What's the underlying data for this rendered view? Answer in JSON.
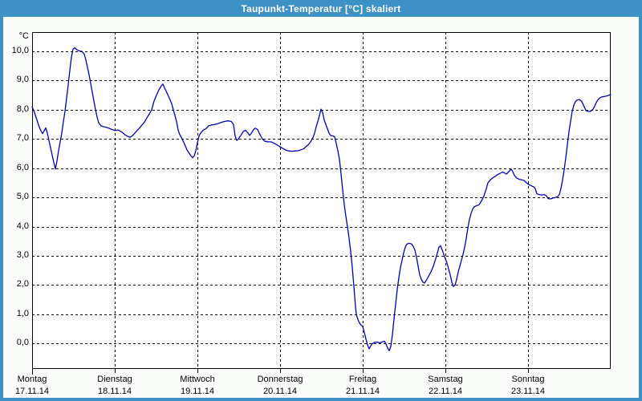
{
  "window": {
    "title": "Taupunkt-Temperatur [°C] skaliert"
  },
  "colors": {
    "titlebar": "#3e91c4",
    "frame": "#3e91c4",
    "page_bg": "#fbfdfb",
    "plot_bg": "#ffffff",
    "grid": "#000000",
    "line": "#0000bb",
    "title_text": "#ffffff",
    "label_text": "#000000"
  },
  "chart_data": {
    "type": "line",
    "title": "Taupunkt-Temperatur [°C] skaliert",
    "xlabel": "",
    "ylabel": "°C",
    "ylim": [
      -0.87,
      10.66
    ],
    "xlim_days": [
      0,
      7
    ],
    "grid": "dashed horizontal at each 1.0 °C, dashed vertical at each day start",
    "legend": "none",
    "yticks": [
      {
        "value": 10,
        "label": "10,0"
      },
      {
        "value": 9,
        "label": "9,0"
      },
      {
        "value": 8,
        "label": "8,0"
      },
      {
        "value": 7,
        "label": "7,0"
      },
      {
        "value": 6,
        "label": "6,0"
      },
      {
        "value": 5,
        "label": "5,0"
      },
      {
        "value": 4,
        "label": "4,0"
      },
      {
        "value": 3,
        "label": "3,0"
      },
      {
        "value": 2,
        "label": "2,0"
      },
      {
        "value": 1,
        "label": "1,0"
      },
      {
        "value": 0,
        "label": "0,0"
      }
    ],
    "days": [
      {
        "name": "Montag",
        "date": "17.11.14"
      },
      {
        "name": "Dienstag",
        "date": "18.11.14"
      },
      {
        "name": "Mittwoch",
        "date": "19.11.14"
      },
      {
        "name": "Donnerstag",
        "date": "20.11.14"
      },
      {
        "name": "Freitag",
        "date": "21.11.14"
      },
      {
        "name": "Samstag",
        "date": "22.11.14"
      },
      {
        "name": "Sonntag",
        "date": "23.11.14"
      }
    ],
    "series": [
      {
        "name": "Taupunkt-Temperatur",
        "unit": "°C",
        "color": "#0000bb",
        "x_unit": "days since Mon 17.11.14 00:00",
        "points": [
          [
            0.0,
            8.1
          ],
          [
            0.029,
            7.9
          ],
          [
            0.058,
            7.65
          ],
          [
            0.087,
            7.4
          ],
          [
            0.107,
            7.28
          ],
          [
            0.126,
            7.18
          ],
          [
            0.146,
            7.28
          ],
          [
            0.165,
            7.38
          ],
          [
            0.184,
            7.2
          ],
          [
            0.204,
            6.95
          ],
          [
            0.223,
            6.7
          ],
          [
            0.243,
            6.45
          ],
          [
            0.262,
            6.2
          ],
          [
            0.282,
            5.97
          ],
          [
            0.301,
            6.25
          ],
          [
            0.32,
            6.6
          ],
          [
            0.34,
            6.9
          ],
          [
            0.359,
            7.2
          ],
          [
            0.379,
            7.6
          ],
          [
            0.398,
            7.95
          ],
          [
            0.417,
            8.4
          ],
          [
            0.437,
            8.85
          ],
          [
            0.456,
            9.35
          ],
          [
            0.476,
            9.8
          ],
          [
            0.495,
            10.08
          ],
          [
            0.515,
            10.12
          ],
          [
            0.544,
            10.05
          ],
          [
            0.573,
            10.01
          ],
          [
            0.602,
            10.0
          ],
          [
            0.631,
            9.9
          ],
          [
            0.65,
            9.7
          ],
          [
            0.67,
            9.45
          ],
          [
            0.689,
            9.2
          ],
          [
            0.709,
            8.9
          ],
          [
            0.728,
            8.6
          ],
          [
            0.748,
            8.3
          ],
          [
            0.767,
            8.0
          ],
          [
            0.786,
            7.75
          ],
          [
            0.806,
            7.55
          ],
          [
            0.835,
            7.45
          ],
          [
            0.864,
            7.42
          ],
          [
            0.893,
            7.4
          ],
          [
            0.922,
            7.38
          ],
          [
            0.951,
            7.34
          ],
          [
            0.981,
            7.31
          ],
          [
            1.01,
            7.29
          ],
          [
            1.039,
            7.31
          ],
          [
            1.068,
            7.27
          ],
          [
            1.097,
            7.21
          ],
          [
            1.126,
            7.14
          ],
          [
            1.155,
            7.09
          ],
          [
            1.184,
            7.06
          ],
          [
            1.214,
            7.11
          ],
          [
            1.243,
            7.2
          ],
          [
            1.272,
            7.3
          ],
          [
            1.301,
            7.38
          ],
          [
            1.33,
            7.48
          ],
          [
            1.359,
            7.58
          ],
          [
            1.388,
            7.72
          ],
          [
            1.417,
            7.86
          ],
          [
            1.447,
            8.0
          ],
          [
            1.476,
            8.3
          ],
          [
            1.505,
            8.5
          ],
          [
            1.534,
            8.68
          ],
          [
            1.563,
            8.82
          ],
          [
            1.583,
            8.88
          ],
          [
            1.602,
            8.75
          ],
          [
            1.631,
            8.58
          ],
          [
            1.66,
            8.4
          ],
          [
            1.689,
            8.2
          ],
          [
            1.718,
            7.9
          ],
          [
            1.748,
            7.6
          ],
          [
            1.767,
            7.3
          ],
          [
            1.786,
            7.15
          ],
          [
            1.816,
            7.0
          ],
          [
            1.845,
            6.82
          ],
          [
            1.874,
            6.63
          ],
          [
            1.903,
            6.5
          ],
          [
            1.922,
            6.42
          ],
          [
            1.942,
            6.36
          ],
          [
            1.961,
            6.42
          ],
          [
            1.981,
            6.6
          ],
          [
            2.0,
            6.87
          ],
          [
            2.019,
            7.1
          ],
          [
            2.039,
            7.2
          ],
          [
            2.068,
            7.3
          ],
          [
            2.107,
            7.36
          ],
          [
            2.136,
            7.45
          ],
          [
            2.175,
            7.48
          ],
          [
            2.214,
            7.5
          ],
          [
            2.252,
            7.53
          ],
          [
            2.291,
            7.57
          ],
          [
            2.33,
            7.6
          ],
          [
            2.369,
            7.62
          ],
          [
            2.408,
            7.6
          ],
          [
            2.437,
            7.5
          ],
          [
            2.456,
            7.1
          ],
          [
            2.476,
            6.95
          ],
          [
            2.495,
            7.0
          ],
          [
            2.524,
            7.12
          ],
          [
            2.553,
            7.25
          ],
          [
            2.583,
            7.3
          ],
          [
            2.612,
            7.2
          ],
          [
            2.631,
            7.12
          ],
          [
            2.65,
            7.18
          ],
          [
            2.68,
            7.32
          ],
          [
            2.699,
            7.37
          ],
          [
            2.728,
            7.32
          ],
          [
            2.757,
            7.15
          ],
          [
            2.786,
            7.0
          ],
          [
            2.816,
            6.92
          ],
          [
            2.854,
            6.9
          ],
          [
            2.893,
            6.9
          ],
          [
            2.932,
            6.85
          ],
          [
            2.961,
            6.8
          ],
          [
            2.99,
            6.75
          ],
          [
            3.019,
            6.7
          ],
          [
            3.049,
            6.65
          ],
          [
            3.078,
            6.61
          ],
          [
            3.107,
            6.59
          ],
          [
            3.146,
            6.58
          ],
          [
            3.184,
            6.59
          ],
          [
            3.223,
            6.6
          ],
          [
            3.252,
            6.63
          ],
          [
            3.282,
            6.66
          ],
          [
            3.311,
            6.73
          ],
          [
            3.34,
            6.8
          ],
          [
            3.369,
            6.9
          ],
          [
            3.398,
            7.05
          ],
          [
            3.417,
            7.2
          ],
          [
            3.437,
            7.42
          ],
          [
            3.456,
            7.6
          ],
          [
            3.476,
            7.8
          ],
          [
            3.495,
            8.02
          ],
          [
            3.515,
            7.9
          ],
          [
            3.534,
            7.65
          ],
          [
            3.553,
            7.5
          ],
          [
            3.573,
            7.35
          ],
          [
            3.592,
            7.2
          ],
          [
            3.612,
            7.12
          ],
          [
            3.641,
            7.1
          ],
          [
            3.66,
            7.08
          ],
          [
            3.68,
            6.85
          ],
          [
            3.699,
            6.6
          ],
          [
            3.718,
            6.3
          ],
          [
            3.738,
            5.8
          ],
          [
            3.757,
            5.25
          ],
          [
            3.777,
            4.75
          ],
          [
            3.796,
            4.35
          ],
          [
            3.816,
            4.0
          ],
          [
            3.835,
            3.6
          ],
          [
            3.854,
            3.15
          ],
          [
            3.874,
            2.6
          ],
          [
            3.883,
            2.3
          ],
          [
            3.893,
            1.95
          ],
          [
            3.903,
            1.6
          ],
          [
            3.913,
            1.25
          ],
          [
            3.922,
            1.0
          ],
          [
            3.942,
            0.82
          ],
          [
            3.961,
            0.7
          ],
          [
            3.981,
            0.63
          ],
          [
            4.0,
            0.58
          ],
          [
            4.019,
            0.38
          ],
          [
            4.039,
            0.15
          ],
          [
            4.058,
            -0.05
          ],
          [
            4.078,
            -0.18
          ],
          [
            4.097,
            -0.08
          ],
          [
            4.117,
            0.0
          ],
          [
            4.146,
            0.04
          ],
          [
            4.175,
            0.05
          ],
          [
            4.204,
            0.02
          ],
          [
            4.233,
            0.05
          ],
          [
            4.262,
            0.08
          ],
          [
            4.282,
            -0.02
          ],
          [
            4.301,
            -0.15
          ],
          [
            4.32,
            -0.25
          ],
          [
            4.34,
            -0.1
          ],
          [
            4.359,
            0.3
          ],
          [
            4.379,
            0.85
          ],
          [
            4.398,
            1.35
          ],
          [
            4.417,
            1.85
          ],
          [
            4.437,
            2.25
          ],
          [
            4.456,
            2.6
          ],
          [
            4.476,
            2.85
          ],
          [
            4.495,
            3.1
          ],
          [
            4.515,
            3.3
          ],
          [
            4.534,
            3.4
          ],
          [
            4.563,
            3.43
          ],
          [
            4.592,
            3.4
          ],
          [
            4.612,
            3.32
          ],
          [
            4.631,
            3.2
          ],
          [
            4.65,
            2.95
          ],
          [
            4.67,
            2.65
          ],
          [
            4.689,
            2.35
          ],
          [
            4.709,
            2.2
          ],
          [
            4.728,
            2.1
          ],
          [
            4.748,
            2.07
          ],
          [
            4.767,
            2.15
          ],
          [
            4.796,
            2.3
          ],
          [
            4.825,
            2.45
          ],
          [
            4.854,
            2.65
          ],
          [
            4.883,
            2.9
          ],
          [
            4.903,
            3.1
          ],
          [
            4.922,
            3.3
          ],
          [
            4.942,
            3.35
          ],
          [
            4.961,
            3.2
          ],
          [
            4.981,
            3.05
          ],
          [
            5.0,
            2.9
          ],
          [
            5.019,
            2.75
          ],
          [
            5.039,
            2.55
          ],
          [
            5.058,
            2.35
          ],
          [
            5.078,
            2.1
          ],
          [
            5.097,
            1.95
          ],
          [
            5.117,
            2.0
          ],
          [
            5.136,
            2.2
          ],
          [
            5.155,
            2.45
          ],
          [
            5.175,
            2.65
          ],
          [
            5.194,
            2.85
          ],
          [
            5.214,
            3.05
          ],
          [
            5.233,
            3.3
          ],
          [
            5.252,
            3.6
          ],
          [
            5.272,
            3.95
          ],
          [
            5.291,
            4.25
          ],
          [
            5.311,
            4.45
          ],
          [
            5.33,
            4.6
          ],
          [
            5.35,
            4.68
          ],
          [
            5.379,
            4.72
          ],
          [
            5.408,
            4.75
          ],
          [
            5.437,
            4.88
          ],
          [
            5.466,
            5.05
          ],
          [
            5.495,
            5.3
          ],
          [
            5.515,
            5.5
          ],
          [
            5.544,
            5.6
          ],
          [
            5.573,
            5.67
          ],
          [
            5.602,
            5.72
          ],
          [
            5.631,
            5.78
          ],
          [
            5.66,
            5.82
          ],
          [
            5.689,
            5.87
          ],
          [
            5.709,
            5.85
          ],
          [
            5.738,
            5.8
          ],
          [
            5.767,
            5.88
          ],
          [
            5.796,
            5.97
          ],
          [
            5.816,
            5.88
          ],
          [
            5.835,
            5.75
          ],
          [
            5.864,
            5.66
          ],
          [
            5.893,
            5.62
          ],
          [
            5.922,
            5.6
          ],
          [
            5.951,
            5.58
          ],
          [
            5.981,
            5.5
          ],
          [
            6.01,
            5.44
          ],
          [
            6.039,
            5.4
          ],
          [
            6.068,
            5.36
          ],
          [
            6.087,
            5.3
          ],
          [
            6.107,
            5.12
          ],
          [
            6.136,
            5.1
          ],
          [
            6.165,
            5.08
          ],
          [
            6.194,
            5.1
          ],
          [
            6.223,
            5.05
          ],
          [
            6.243,
            4.96
          ],
          [
            6.272,
            4.95
          ],
          [
            6.301,
            4.98
          ],
          [
            6.33,
            5.0
          ],
          [
            6.359,
            5.03
          ],
          [
            6.379,
            5.1
          ],
          [
            6.398,
            5.3
          ],
          [
            6.417,
            5.6
          ],
          [
            6.437,
            5.95
          ],
          [
            6.456,
            6.35
          ],
          [
            6.476,
            6.8
          ],
          [
            6.495,
            7.25
          ],
          [
            6.515,
            7.6
          ],
          [
            6.534,
            7.95
          ],
          [
            6.553,
            8.15
          ],
          [
            6.573,
            8.28
          ],
          [
            6.592,
            8.33
          ],
          [
            6.621,
            8.35
          ],
          [
            6.65,
            8.28
          ],
          [
            6.68,
            8.1
          ],
          [
            6.699,
            7.98
          ],
          [
            6.728,
            7.94
          ],
          [
            6.757,
            7.95
          ],
          [
            6.786,
            8.02
          ],
          [
            6.806,
            8.12
          ],
          [
            6.825,
            8.25
          ],
          [
            6.845,
            8.34
          ],
          [
            6.864,
            8.4
          ],
          [
            6.893,
            8.44
          ],
          [
            6.932,
            8.46
          ],
          [
            6.961,
            8.48
          ],
          [
            7.0,
            8.52
          ]
        ]
      }
    ]
  }
}
